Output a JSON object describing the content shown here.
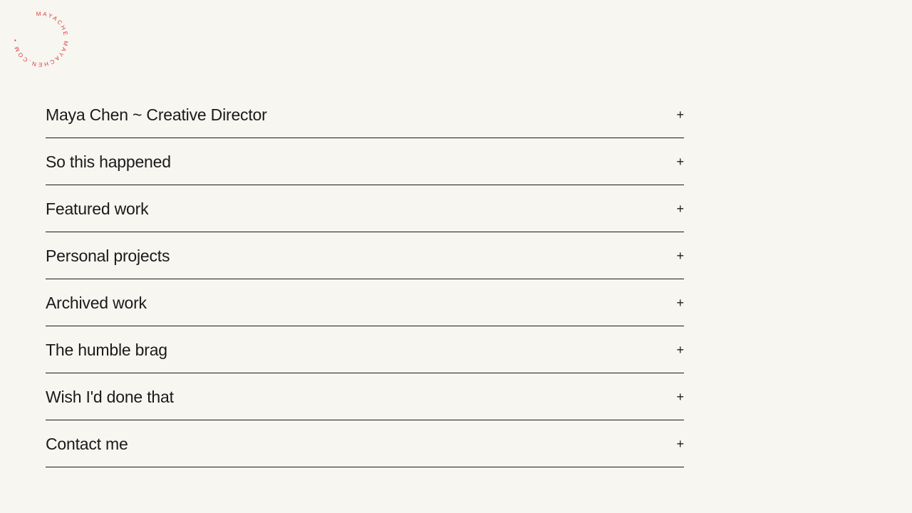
{
  "logo": {
    "text": "MAYACHE MAYACHEN.COM •",
    "color": "#d93a3a"
  },
  "accordion": [
    {
      "label": "Maya Chen ~ Creative Director",
      "icon": "plus-icon",
      "symbol": "+"
    },
    {
      "label": "So this happened",
      "icon": "plus-icon",
      "symbol": "+"
    },
    {
      "label": "Featured work",
      "icon": "plus-icon",
      "symbol": "+"
    },
    {
      "label": "Personal projects",
      "icon": "plus-icon",
      "symbol": "+"
    },
    {
      "label": "Archived work",
      "icon": "plus-icon",
      "symbol": "+"
    },
    {
      "label": "The humble brag",
      "icon": "plus-icon",
      "symbol": "+"
    },
    {
      "label": "Wish I'd done that",
      "icon": "plus-icon",
      "symbol": "+"
    },
    {
      "label": "Contact me",
      "icon": "plus-icon",
      "symbol": "+"
    }
  ]
}
